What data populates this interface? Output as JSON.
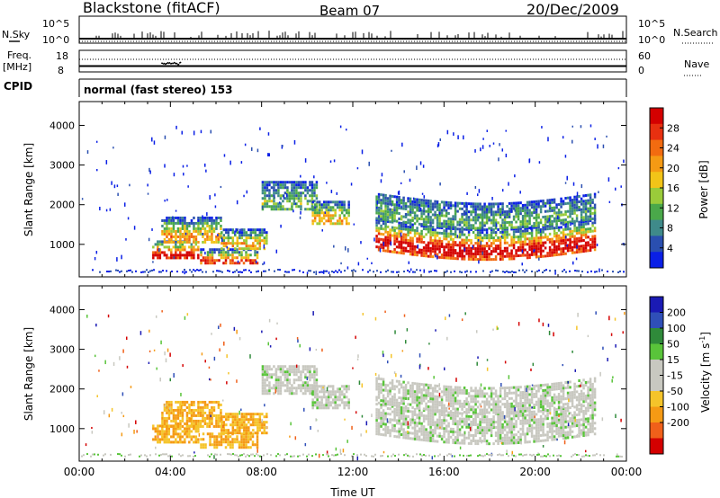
{
  "header": {
    "station": "Blackstone (fitACF)",
    "beam": "Beam 07",
    "date": "20/Dec/2009"
  },
  "colors": {
    "power_scale": [
      "#0a1fe6",
      "#2a4fb0",
      "#3f8a8a",
      "#4aa84a",
      "#9acb3a",
      "#f2c418",
      "#f59a14",
      "#f26b10",
      "#e83010",
      "#d40000"
    ],
    "velocity_scale": [
      "#d40000",
      "#f0601a",
      "#f59a14",
      "#f5c42a",
      "#c8c8c0",
      "#c8c8c0",
      "#59c43a",
      "#2f8a3a",
      "#2f4fb8",
      "#1a1ab4"
    ],
    "noise_line": "#000000"
  },
  "chart_data": [
    {
      "type": "line",
      "panel": "noise",
      "left_label": "N.Sky",
      "right_label": "N.Search",
      "left_ticks": [
        "10^5",
        "10^0"
      ],
      "right_ticks": [
        "10^5",
        "10^0"
      ]
    },
    {
      "type": "line",
      "panel": "frequency",
      "left_label": "Freq.",
      "left_unit": "[MHz]",
      "left_ticks": [
        "18",
        "8"
      ],
      "right_label": "Nave",
      "right_ticks": [
        "60",
        "0"
      ]
    },
    {
      "type": "table",
      "panel": "cpid",
      "label": "CPID",
      "mode": "normal (fast stereo) 153"
    },
    {
      "type": "heatmap",
      "panel": "power",
      "ylabel": "Slant Range [km]",
      "yticks": [
        "4000",
        "3000",
        "2000",
        "1000"
      ],
      "ylim": [
        180,
        4600
      ],
      "xlim": [
        0,
        24
      ],
      "colorbar_label": "Power [dB]",
      "colorbar_ticks": [
        "28",
        "24",
        "20",
        "16",
        "12",
        "8",
        "4"
      ],
      "colorbar_range": [
        0,
        32
      ]
    },
    {
      "type": "heatmap",
      "panel": "velocity",
      "ylabel": "Slant Range [km]",
      "yticks": [
        "4000",
        "3000",
        "2000",
        "1000"
      ],
      "ylim": [
        180,
        4600
      ],
      "xlim": [
        0,
        24
      ],
      "xlabel": "Time UT",
      "xticks": [
        "00:00",
        "04:00",
        "08:00",
        "12:00",
        "16:00",
        "20:00",
        "00:00"
      ],
      "colorbar_label": "Velocity [m s",
      "colorbar_label_sup": "-1",
      "colorbar_label_end": "]",
      "colorbar_ticks": [
        "200",
        "100",
        "50",
        "15",
        "-15",
        "-50",
        "-100",
        "-200"
      ]
    }
  ]
}
